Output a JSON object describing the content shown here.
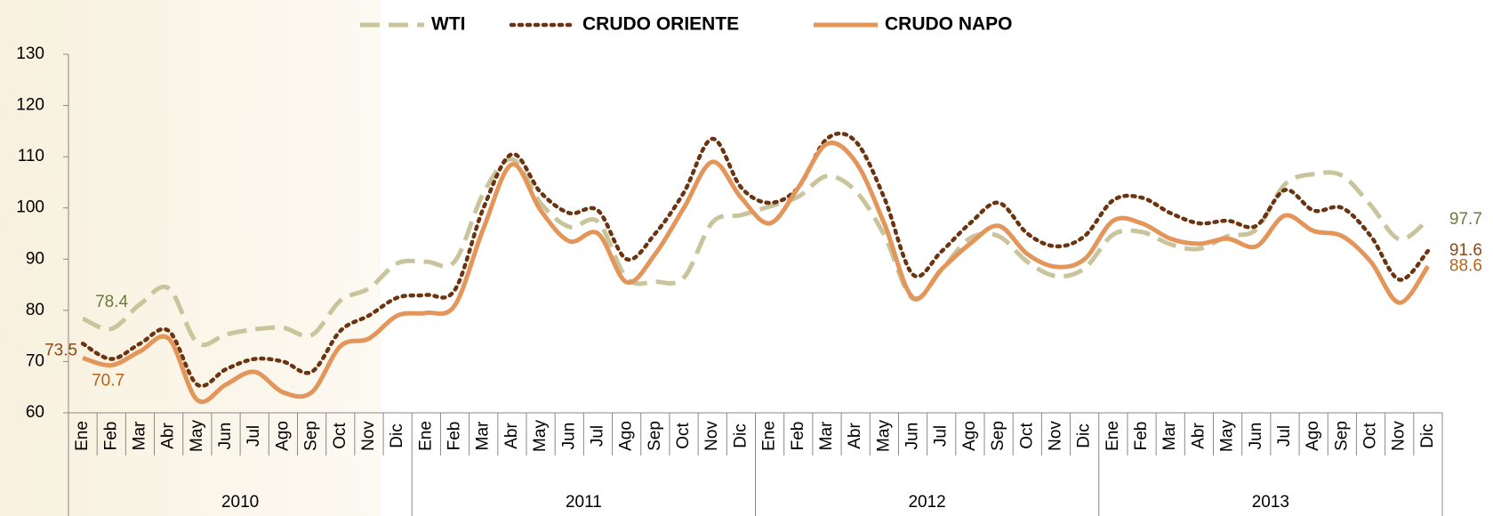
{
  "chart_data": {
    "type": "line",
    "categories": [
      "Ene",
      "Feb",
      "Mar",
      "Abr",
      "May",
      "Jun",
      "Jul",
      "Ago",
      "Sep",
      "Oct",
      "Nov",
      "Dic",
      "Ene",
      "Feb",
      "Mar",
      "Abr",
      "May",
      "Jun",
      "Jul",
      "Ago",
      "Sep",
      "Oct",
      "Nov",
      "Dic",
      "Ene",
      "Feb",
      "Mar",
      "Abr",
      "May",
      "Jun",
      "Jul",
      "Ago",
      "Sep",
      "Oct",
      "Nov",
      "Dic",
      "Ene",
      "Feb",
      "Mar",
      "Abr",
      "May",
      "Jun",
      "Jul",
      "Ago",
      "Sep",
      "Oct",
      "Nov",
      "Dic"
    ],
    "years": [
      "2010",
      "2011",
      "2012",
      "2013"
    ],
    "ylim": [
      60,
      130
    ],
    "yticks": [
      60,
      70,
      80,
      90,
      100,
      110,
      120,
      130
    ],
    "series": [
      {
        "name": "WTI",
        "color": "#c9c49b",
        "style": "dashed",
        "label_color": "#6b7a3c",
        "values": [
          78.4,
          76.4,
          81.2,
          84.3,
          73.7,
          75.3,
          76.3,
          76.6,
          75.2,
          81.9,
          84.3,
          89.2,
          89.5,
          89.6,
          102.9,
          109.5,
          100.9,
          96.3,
          97.3,
          86.3,
          85.6,
          86.4,
          97.2,
          98.6,
          100.3,
          102.2,
          106.2,
          103.3,
          94.7,
          82.3,
          87.9,
          94.1,
          94.5,
          89.5,
          86.7,
          88.2,
          94.8,
          95.3,
          92.9,
          92.0,
          94.5,
          95.8,
          104.6,
          106.6,
          106.3,
          100.5,
          93.9,
          97.7
        ],
        "value_labels": [
          "78.4",
          null,
          null,
          null,
          null,
          null,
          null,
          null,
          null,
          null,
          null,
          null,
          null,
          null,
          null,
          null,
          null,
          null,
          null,
          null,
          null,
          null,
          null,
          null,
          null,
          null,
          null,
          null,
          null,
          null,
          null,
          null,
          null,
          null,
          null,
          null,
          null,
          null,
          null,
          null,
          null,
          null,
          null,
          null,
          null,
          null,
          null,
          "97.7"
        ]
      },
      {
        "name": "CRUDO ORIENTE",
        "color": "#6b3410",
        "style": "dotted",
        "label_color": "#8a4a1a",
        "values": [
          73.5,
          70.5,
          73.5,
          76.0,
          65.5,
          68.5,
          70.5,
          70.0,
          68.0,
          76.0,
          79.0,
          82.5,
          83.0,
          84.0,
          100.0,
          110.5,
          103.0,
          99.0,
          99.5,
          90.0,
          95.0,
          103.0,
          113.5,
          104.0,
          101.0,
          104.0,
          113.5,
          113.0,
          102.0,
          87.0,
          91.5,
          97.0,
          101.0,
          95.0,
          92.5,
          94.5,
          101.5,
          102.0,
          99.0,
          97.0,
          97.5,
          96.5,
          103.5,
          99.5,
          100.0,
          94.5,
          86.0,
          91.6
        ],
        "value_labels": [
          "73.5",
          null,
          null,
          null,
          null,
          null,
          null,
          null,
          null,
          null,
          null,
          null,
          null,
          null,
          null,
          null,
          null,
          null,
          null,
          null,
          null,
          null,
          null,
          null,
          null,
          null,
          null,
          null,
          null,
          null,
          null,
          null,
          null,
          null,
          null,
          null,
          null,
          null,
          null,
          null,
          null,
          null,
          null,
          null,
          null,
          null,
          null,
          "91.6"
        ]
      },
      {
        "name": "CRUDO NAPO",
        "color": "#e3955a",
        "style": "solid",
        "label_color": "#b3651e",
        "values": [
          70.7,
          69.3,
          72.0,
          74.5,
          62.5,
          65.5,
          68.0,
          64.0,
          64.0,
          73.0,
          74.5,
          79.0,
          79.5,
          81.0,
          96.0,
          108.5,
          99.5,
          93.5,
          95.0,
          85.5,
          91.0,
          100.0,
          109.0,
          102.0,
          97.0,
          104.0,
          112.5,
          109.0,
          97.0,
          82.5,
          88.0,
          93.0,
          96.5,
          91.0,
          88.5,
          90.0,
          97.5,
          97.0,
          94.0,
          93.0,
          94.0,
          92.5,
          98.5,
          95.5,
          94.5,
          89.5,
          81.5,
          88.6
        ],
        "value_labels": [
          "70.7",
          null,
          null,
          null,
          null,
          null,
          null,
          null,
          null,
          null,
          null,
          null,
          null,
          null,
          null,
          null,
          null,
          null,
          null,
          null,
          null,
          null,
          null,
          null,
          null,
          null,
          null,
          null,
          null,
          null,
          null,
          null,
          null,
          null,
          null,
          null,
          null,
          null,
          null,
          null,
          null,
          null,
          null,
          null,
          null,
          null,
          null,
          "88.6"
        ]
      }
    ]
  }
}
